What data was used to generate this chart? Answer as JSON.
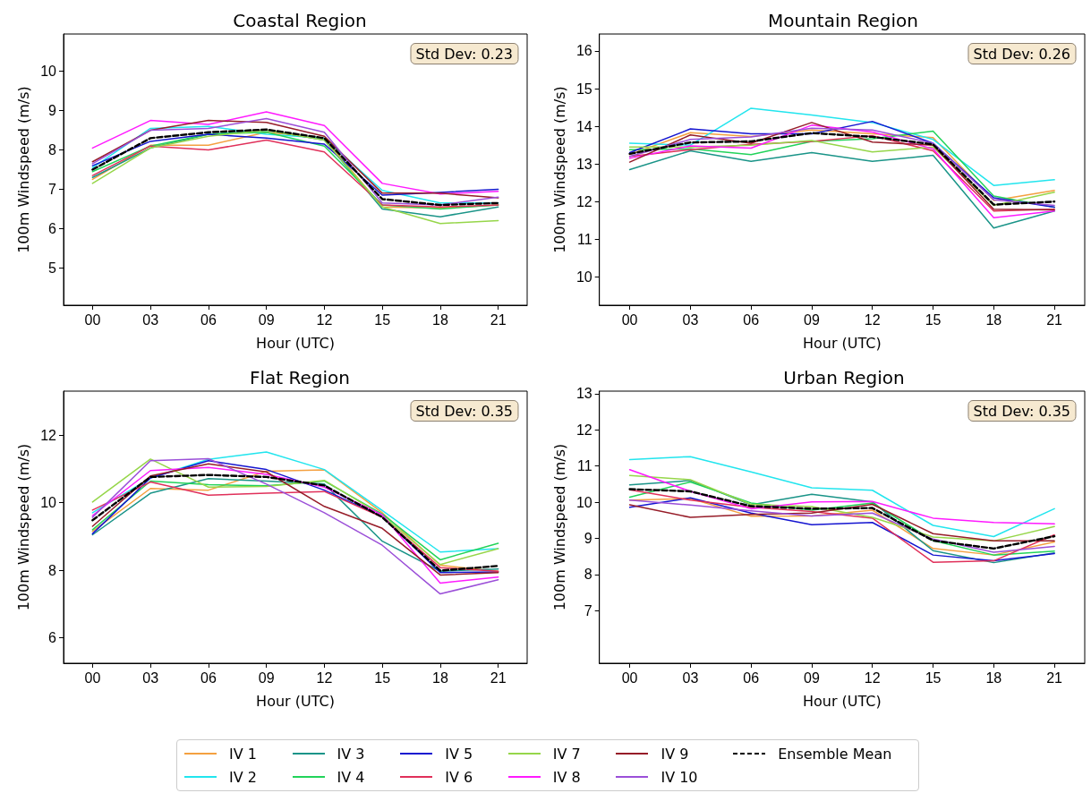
{
  "chart_data": [
    {
      "type": "line",
      "title": "Coastal Region",
      "xlabel": "Hour (UTC)",
      "ylabel": "100m Windspeed (m/s)",
      "categories": [
        "00",
        "03",
        "06",
        "09",
        "12",
        "15",
        "18",
        "21"
      ],
      "ylim": [
        4.05,
        10.95
      ],
      "yticks": [
        5,
        6,
        7,
        8,
        9,
        10
      ],
      "grid": false,
      "legend": "bottom",
      "marker": "none",
      "annotations": [
        "Std Dev: 0.23"
      ],
      "series": [
        {
          "name": "IV 1",
          "color": "#f4a040",
          "values": [
            7.25,
            8.12,
            8.12,
            8.45,
            8.3,
            6.55,
            6.52,
            6.6
          ]
        },
        {
          "name": "IV 2",
          "color": "#22e5ee",
          "values": [
            7.55,
            8.55,
            8.6,
            8.4,
            8.3,
            6.97,
            6.65,
            6.65
          ]
        },
        {
          "name": "IV 3",
          "color": "#1a9488",
          "values": [
            7.3,
            8.05,
            8.4,
            8.5,
            8.25,
            6.5,
            6.3,
            6.55
          ]
        },
        {
          "name": "IV 4",
          "color": "#22d35a",
          "values": [
            7.45,
            8.1,
            8.4,
            8.45,
            8.1,
            6.6,
            6.5,
            6.6
          ]
        },
        {
          "name": "IV 5",
          "color": "#1515d0",
          "values": [
            7.6,
            8.22,
            8.4,
            8.3,
            8.15,
            6.85,
            6.92,
            7.0
          ]
        },
        {
          "name": "IV 6",
          "color": "#e0305a",
          "values": [
            7.35,
            8.1,
            8.0,
            8.25,
            7.95,
            6.6,
            6.55,
            6.6
          ]
        },
        {
          "name": "IV 7",
          "color": "#96d64a",
          "values": [
            7.15,
            8.05,
            8.35,
            8.5,
            8.25,
            6.55,
            6.13,
            6.2
          ]
        },
        {
          "name": "IV 8",
          "color": "#ff1aff",
          "values": [
            8.05,
            8.75,
            8.65,
            8.97,
            8.62,
            7.15,
            6.88,
            6.95
          ]
        },
        {
          "name": "IV 9",
          "color": "#961c28",
          "values": [
            7.7,
            8.5,
            8.75,
            8.7,
            8.35,
            6.9,
            6.9,
            6.78
          ]
        },
        {
          "name": "IV 10",
          "color": "#9b4fd8",
          "values": [
            7.65,
            8.5,
            8.55,
            8.8,
            8.45,
            6.65,
            6.6,
            6.8
          ]
        },
        {
          "name": "Ensemble Mean",
          "color": "#000000",
          "line_style": "dashed",
          "values": [
            7.5,
            8.3,
            8.45,
            8.52,
            8.3,
            6.75,
            6.6,
            6.65
          ]
        }
      ]
    },
    {
      "type": "line",
      "title": "Mountain Region",
      "xlabel": "Hour (UTC)",
      "ylabel": "100m Windspeed (m/s)",
      "categories": [
        "00",
        "03",
        "06",
        "09",
        "12",
        "15",
        "18",
        "21"
      ],
      "ylim": [
        9.25,
        16.45
      ],
      "yticks": [
        10,
        11,
        12,
        13,
        14,
        15,
        16
      ],
      "grid": false,
      "legend": "bottom",
      "marker": "none",
      "annotations": [
        "Std Dev: 0.26"
      ],
      "series": [
        {
          "name": "IV 1",
          "color": "#f4a040",
          "values": [
            13.25,
            13.83,
            13.73,
            13.9,
            13.8,
            13.7,
            12.03,
            12.3
          ]
        },
        {
          "name": "IV 2",
          "color": "#22e5ee",
          "values": [
            13.55,
            13.5,
            14.48,
            14.3,
            14.1,
            13.65,
            12.43,
            12.58
          ]
        },
        {
          "name": "IV 3",
          "color": "#1a9488",
          "values": [
            12.85,
            13.35,
            13.07,
            13.3,
            13.07,
            13.23,
            11.3,
            11.75
          ]
        },
        {
          "name": "IV 4",
          "color": "#22d35a",
          "values": [
            13.38,
            13.4,
            13.25,
            13.6,
            13.67,
            13.87,
            12.15,
            11.85
          ]
        },
        {
          "name": "IV 5",
          "color": "#1515d0",
          "values": [
            13.3,
            13.93,
            13.8,
            13.8,
            14.13,
            13.55,
            12.1,
            11.85
          ]
        },
        {
          "name": "IV 6",
          "color": "#e0305a",
          "values": [
            13.2,
            13.38,
            13.52,
            13.6,
            13.75,
            13.35,
            11.75,
            11.8
          ]
        },
        {
          "name": "IV 7",
          "color": "#96d64a",
          "values": [
            13.45,
            13.45,
            13.5,
            13.62,
            13.32,
            13.45,
            11.9,
            12.25
          ]
        },
        {
          "name": "IV 8",
          "color": "#ff1aff",
          "values": [
            13.15,
            13.48,
            13.42,
            14.03,
            13.85,
            13.4,
            11.57,
            11.75
          ]
        },
        {
          "name": "IV 9",
          "color": "#961c28",
          "values": [
            13.05,
            13.77,
            13.55,
            14.1,
            13.58,
            13.5,
            11.8,
            11.78
          ]
        },
        {
          "name": "IV 10",
          "color": "#9b4fd8",
          "values": [
            13.2,
            13.65,
            13.72,
            13.95,
            13.9,
            13.55,
            12.05,
            11.9
          ]
        },
        {
          "name": "Ensemble Mean",
          "color": "#000000",
          "line_style": "dashed",
          "values": [
            13.27,
            13.57,
            13.6,
            13.82,
            13.72,
            13.52,
            11.92,
            12.0
          ]
        }
      ]
    },
    {
      "type": "line",
      "title": "Flat Region",
      "xlabel": "Hour (UTC)",
      "ylabel": "100m Windspeed (m/s)",
      "categories": [
        "00",
        "03",
        "06",
        "09",
        "12",
        "15",
        "18",
        "21"
      ],
      "ylim": [
        5.25,
        13.3
      ],
      "yticks": [
        6,
        8,
        10,
        12
      ],
      "grid": false,
      "legend": "bottom",
      "marker": "none",
      "annotations": [
        "Std Dev: 0.35"
      ],
      "series": [
        {
          "name": "IV 1",
          "color": "#f4a040",
          "values": [
            9.15,
            10.42,
            10.37,
            10.93,
            10.97,
            9.7,
            8.15,
            7.97
          ]
        },
        {
          "name": "IV 2",
          "color": "#22e5ee",
          "values": [
            9.7,
            10.73,
            11.28,
            11.5,
            10.98,
            9.77,
            8.54,
            8.64
          ]
        },
        {
          "name": "IV 3",
          "color": "#1a9488",
          "values": [
            9.05,
            10.28,
            10.71,
            10.64,
            10.55,
            8.86,
            7.97,
            8.04
          ]
        },
        {
          "name": "IV 4",
          "color": "#22d35a",
          "values": [
            9.2,
            10.64,
            10.53,
            10.5,
            10.64,
            9.66,
            8.31,
            8.8
          ]
        },
        {
          "name": "IV 5",
          "color": "#1515d0",
          "values": [
            9.08,
            10.73,
            11.24,
            10.98,
            10.37,
            9.59,
            7.93,
            7.95
          ]
        },
        {
          "name": "IV 6",
          "color": "#e0305a",
          "values": [
            9.78,
            10.61,
            10.22,
            10.28,
            10.33,
            9.57,
            8.08,
            7.97
          ]
        },
        {
          "name": "IV 7",
          "color": "#96d64a",
          "values": [
            10.02,
            11.29,
            10.46,
            10.48,
            10.66,
            9.62,
            8.17,
            8.64
          ]
        },
        {
          "name": "IV 8",
          "color": "#ff1aff",
          "values": [
            9.62,
            10.95,
            11.04,
            10.84,
            10.46,
            9.64,
            7.62,
            7.8
          ]
        },
        {
          "name": "IV 9",
          "color": "#961c28",
          "values": [
            9.3,
            10.79,
            11.15,
            10.91,
            9.89,
            9.24,
            7.86,
            7.93
          ]
        },
        {
          "name": "IV 10",
          "color": "#9b4fd8",
          "values": [
            9.57,
            11.24,
            11.3,
            10.55,
            9.7,
            8.74,
            7.3,
            7.72
          ]
        },
        {
          "name": "Ensemble Mean",
          "color": "#000000",
          "line_style": "dashed",
          "values": [
            9.48,
            10.76,
            10.82,
            10.76,
            10.51,
            9.57,
            7.99,
            8.13
          ]
        }
      ]
    },
    {
      "type": "line",
      "title": "Urban Region",
      "xlabel": "Hour (UTC)",
      "ylabel": "100m Windspeed (m/s)",
      "categories": [
        "00",
        "03",
        "06",
        "09",
        "12",
        "15",
        "18",
        "21"
      ],
      "ylim": [
        5.55,
        13.07
      ],
      "yticks": [
        7,
        8,
        9,
        10,
        11,
        12,
        13
      ],
      "grid": false,
      "legend": "bottom",
      "marker": "none",
      "annotations": [
        "Std Dev: 0.35"
      ],
      "series": [
        {
          "name": "IV 1",
          "color": "#f4a040",
          "values": [
            10.06,
            10.1,
            9.61,
            9.62,
            9.78,
            8.72,
            8.54,
            8.9
          ]
        },
        {
          "name": "IV 2",
          "color": "#22e5ee",
          "values": [
            11.18,
            11.26,
            10.84,
            10.4,
            10.33,
            9.36,
            9.05,
            9.82
          ]
        },
        {
          "name": "IV 3",
          "color": "#1a9488",
          "values": [
            10.48,
            10.6,
            9.93,
            10.22,
            10.01,
            8.66,
            8.33,
            8.6
          ]
        },
        {
          "name": "IV 4",
          "color": "#22d35a",
          "values": [
            10.14,
            10.56,
            9.98,
            9.78,
            9.98,
            8.94,
            8.54,
            8.65
          ]
        },
        {
          "name": "IV 5",
          "color": "#1515d0",
          "values": [
            9.86,
            10.12,
            9.7,
            9.38,
            9.44,
            8.54,
            8.38,
            8.58
          ]
        },
        {
          "name": "IV 6",
          "color": "#e0305a",
          "values": [
            10.34,
            10.06,
            9.86,
            9.74,
            9.56,
            8.34,
            8.38,
            9.1
          ]
        },
        {
          "name": "IV 7",
          "color": "#96d64a",
          "values": [
            10.74,
            10.62,
            9.94,
            9.88,
            9.58,
            9.04,
            8.93,
            9.33
          ]
        },
        {
          "name": "IV 8",
          "color": "#ff1aff",
          "values": [
            10.9,
            10.3,
            9.82,
            10.01,
            10.02,
            9.56,
            9.44,
            9.4
          ]
        },
        {
          "name": "IV 9",
          "color": "#961c28",
          "values": [
            9.93,
            9.58,
            9.66,
            9.7,
            9.94,
            9.13,
            8.93,
            8.93
          ]
        },
        {
          "name": "IV 10",
          "color": "#9b4fd8",
          "values": [
            10.06,
            9.92,
            9.76,
            9.62,
            9.7,
            8.98,
            8.62,
            8.78
          ]
        },
        {
          "name": "Ensemble Mean",
          "color": "#000000",
          "line_style": "dashed",
          "values": [
            10.36,
            10.3,
            9.89,
            9.82,
            9.84,
            8.94,
            8.72,
            9.06
          ]
        }
      ]
    }
  ]
}
